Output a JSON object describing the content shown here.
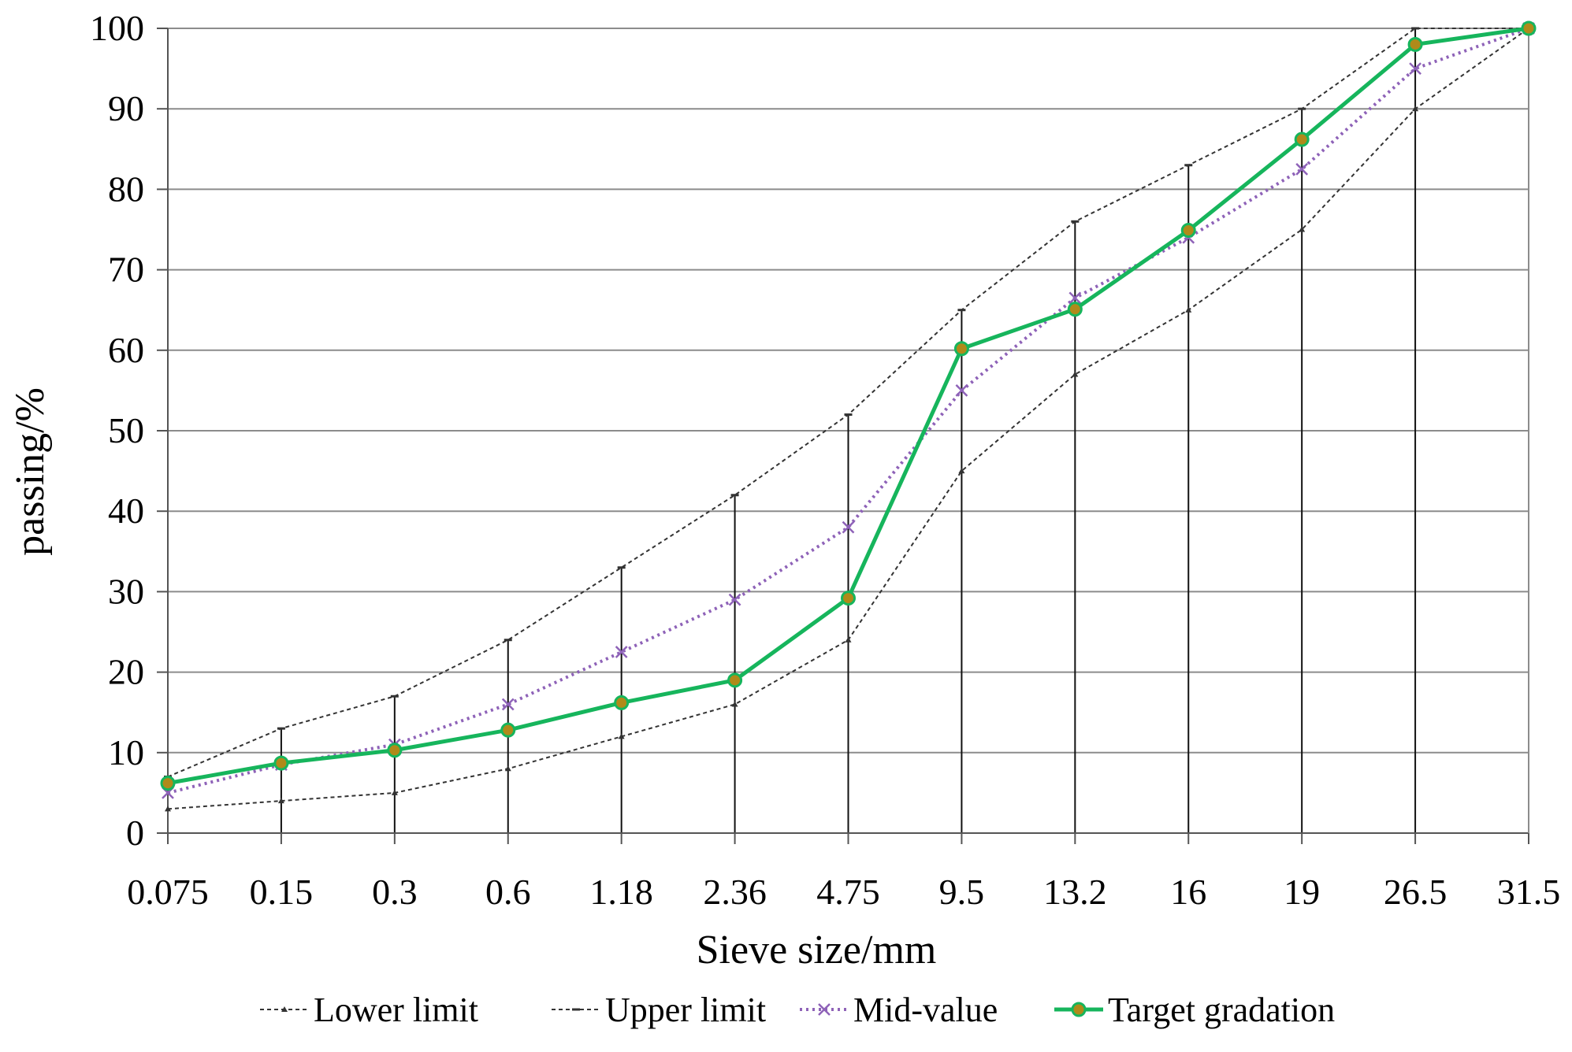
{
  "chart_data": {
    "type": "line",
    "xlabel": "Sieve size/mm",
    "ylabel": "passing/%",
    "categories": [
      "0.075",
      "0.15",
      "0.3",
      "0.6",
      "1.18",
      "2.36",
      "4.75",
      "9.5",
      "13.2",
      "16",
      "19",
      "26.5",
      "31.5"
    ],
    "y_ticks": [
      "0",
      "10",
      "20",
      "30",
      "40",
      "50",
      "60",
      "70",
      "80",
      "90",
      "100"
    ],
    "ylim": [
      0,
      100
    ],
    "grid": "horizontal",
    "legend_position": "bottom",
    "series": [
      {
        "name": "Lower limit",
        "color": "#333333",
        "style": "dashed-triangle",
        "values": [
          3,
          4,
          5,
          8,
          12,
          16,
          24,
          45,
          57,
          65,
          75,
          90,
          100
        ]
      },
      {
        "name": "Upper limit",
        "color": "#333333",
        "style": "dashed-dash",
        "values": [
          7,
          13,
          17,
          24,
          33,
          42,
          52,
          65,
          76,
          83,
          90,
          100,
          100
        ]
      },
      {
        "name": "Mid-value",
        "color": "#8e62b8",
        "style": "dotted-x",
        "values": [
          5,
          8.5,
          11,
          16,
          22.5,
          29,
          38,
          55,
          66.5,
          74,
          82.5,
          95,
          100
        ]
      },
      {
        "name": "Target gradation",
        "color": "#16b55c",
        "marker_color": "#b08a1a",
        "style": "solid-circle",
        "values": [
          6.2,
          8.7,
          10.3,
          12.8,
          16.2,
          19,
          29.2,
          60.2,
          65.1,
          74.9,
          86.2,
          98,
          100
        ]
      }
    ]
  }
}
